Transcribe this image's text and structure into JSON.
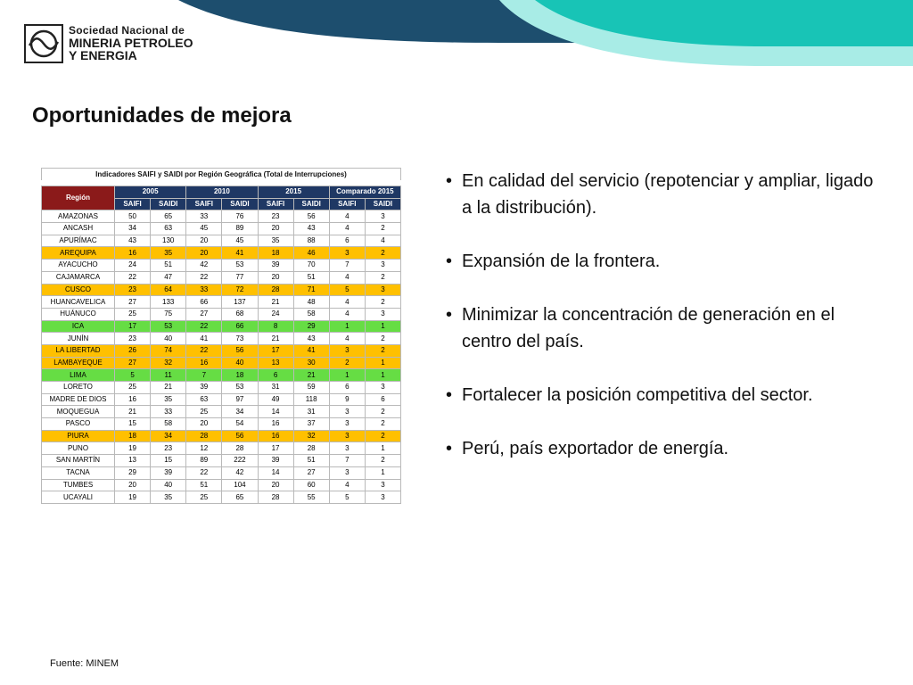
{
  "header": {
    "logo_line1": "Sociedad Nacional de",
    "logo_line2": "MINERIA PETROLEO",
    "logo_line3": "Y ENERGIA",
    "colors": {
      "navy": "#1d4e6e",
      "teal": "#18c4b6",
      "light_teal": "#a8ece6"
    }
  },
  "title": "Oportunidades de mejora",
  "table": {
    "caption": "Indicadores SAIFI y SAIDI por Región Geográfica (Total de Interrupciones)",
    "region_header": "Región",
    "group_headers": [
      "2005",
      "2010",
      "2015",
      "Comparado 2015"
    ],
    "sub_headers": [
      "SAIFI",
      "SAIDI",
      "SAIFI",
      "SAIDI",
      "SAIFI",
      "SAIDI",
      "SAIFI",
      "SAIDI"
    ],
    "highlight_colors": {
      "yellow": "#ffc000",
      "green": "#66dd44"
    },
    "rows": [
      {
        "region": "AMAZONAS",
        "values": [
          "50",
          "65",
          "33",
          "76",
          "23",
          "56",
          "4",
          "3"
        ],
        "hl": "plain"
      },
      {
        "region": "ANCASH",
        "values": [
          "34",
          "63",
          "45",
          "89",
          "20",
          "43",
          "4",
          "2"
        ],
        "hl": "plain"
      },
      {
        "region": "APURÍMAC",
        "values": [
          "43",
          "130",
          "20",
          "45",
          "35",
          "88",
          "6",
          "4"
        ],
        "hl": "plain"
      },
      {
        "region": "AREQUIPA",
        "values": [
          "16",
          "35",
          "20",
          "41",
          "18",
          "46",
          "3",
          "2"
        ],
        "hl": "yellow"
      },
      {
        "region": "AYACUCHO",
        "values": [
          "24",
          "51",
          "42",
          "53",
          "39",
          "70",
          "7",
          "3"
        ],
        "hl": "plain"
      },
      {
        "region": "CAJAMARCA",
        "values": [
          "22",
          "47",
          "22",
          "77",
          "20",
          "51",
          "4",
          "2"
        ],
        "hl": "plain"
      },
      {
        "region": "CUSCO",
        "values": [
          "23",
          "64",
          "33",
          "72",
          "28",
          "71",
          "5",
          "3"
        ],
        "hl": "yellow"
      },
      {
        "region": "HUANCAVELICA",
        "values": [
          "27",
          "133",
          "66",
          "137",
          "21",
          "48",
          "4",
          "2"
        ],
        "hl": "plain"
      },
      {
        "region": "HUÁNUCO",
        "values": [
          "25",
          "75",
          "27",
          "68",
          "24",
          "58",
          "4",
          "3"
        ],
        "hl": "plain"
      },
      {
        "region": "ICA",
        "values": [
          "17",
          "53",
          "22",
          "66",
          "8",
          "29",
          "1",
          "1"
        ],
        "hl": "green"
      },
      {
        "region": "JUNÍN",
        "values": [
          "23",
          "40",
          "41",
          "73",
          "21",
          "43",
          "4",
          "2"
        ],
        "hl": "plain"
      },
      {
        "region": "LA LIBERTAD",
        "values": [
          "26",
          "74",
          "22",
          "56",
          "17",
          "41",
          "3",
          "2"
        ],
        "hl": "yellow"
      },
      {
        "region": "LAMBAYEQUE",
        "values": [
          "27",
          "32",
          "16",
          "40",
          "13",
          "30",
          "2",
          "1"
        ],
        "hl": "yellow"
      },
      {
        "region": "LIMA",
        "values": [
          "5",
          "11",
          "7",
          "18",
          "6",
          "21",
          "1",
          "1"
        ],
        "hl": "green"
      },
      {
        "region": "LORETO",
        "values": [
          "25",
          "21",
          "39",
          "53",
          "31",
          "59",
          "6",
          "3"
        ],
        "hl": "plain"
      },
      {
        "region": "MADRE DE DIOS",
        "values": [
          "16",
          "35",
          "63",
          "97",
          "49",
          "118",
          "9",
          "6"
        ],
        "hl": "plain"
      },
      {
        "region": "MOQUEGUA",
        "values": [
          "21",
          "33",
          "25",
          "34",
          "14",
          "31",
          "3",
          "2"
        ],
        "hl": "plain"
      },
      {
        "region": "PASCO",
        "values": [
          "15",
          "58",
          "20",
          "54",
          "16",
          "37",
          "3",
          "2"
        ],
        "hl": "plain"
      },
      {
        "region": "PIURA",
        "values": [
          "18",
          "34",
          "28",
          "56",
          "16",
          "32",
          "3",
          "2"
        ],
        "hl": "yellow"
      },
      {
        "region": "PUNO",
        "values": [
          "19",
          "23",
          "12",
          "28",
          "17",
          "28",
          "3",
          "1"
        ],
        "hl": "plain"
      },
      {
        "region": "SAN MARTÍN",
        "values": [
          "13",
          "15",
          "89",
          "222",
          "39",
          "51",
          "7",
          "2"
        ],
        "hl": "plain"
      },
      {
        "region": "TACNA",
        "values": [
          "29",
          "39",
          "22",
          "42",
          "14",
          "27",
          "3",
          "1"
        ],
        "hl": "plain"
      },
      {
        "region": "TUMBES",
        "values": [
          "20",
          "40",
          "51",
          "104",
          "20",
          "60",
          "4",
          "3"
        ],
        "hl": "plain"
      },
      {
        "region": "UCAYALI",
        "values": [
          "19",
          "35",
          "25",
          "65",
          "28",
          "55",
          "5",
          "3"
        ],
        "hl": "plain"
      }
    ]
  },
  "bullets": [
    "En calidad del servicio (repotenciar y ampliar, ligado a la distribución).",
    "Expansión de la frontera.",
    "Minimizar la concentración de generación en el centro del país.",
    "Fortalecer la posición competitiva del sector.",
    "Perú, país exportador de energía."
  ],
  "bullet_glyph": "•",
  "source": "Fuente: MINEM"
}
